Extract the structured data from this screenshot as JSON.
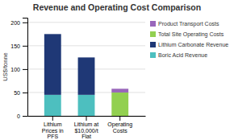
{
  "chart_data": {
    "type": "bar",
    "stacked": true,
    "title": "Revenue and Operating Cost Comparison",
    "ylabel": "US$/tonne",
    "categories": [
      "Lithium\nPrices in\nPFS",
      "Lithium at\n$10,000/t\nFlat",
      "Operating\nCosts"
    ],
    "series": [
      {
        "name": "Boric Acid Revenue",
        "color": "#4DBFBF",
        "values": [
          45,
          45,
          0
        ]
      },
      {
        "name": "Lithium Carbonate Revenue",
        "color": "#1F3876",
        "values": [
          130,
          80,
          0
        ]
      },
      {
        "name": "Total Site Operating Costs",
        "color": "#92D050",
        "values": [
          0,
          0,
          50
        ]
      },
      {
        "name": "Product Transport Costs",
        "color": "#9966BB",
        "values": [
          0,
          0,
          8
        ]
      }
    ],
    "ylim": [
      0,
      210
    ],
    "yticks": [
      0,
      50,
      100,
      150,
      200
    ],
    "grid": true,
    "legend": "right"
  }
}
